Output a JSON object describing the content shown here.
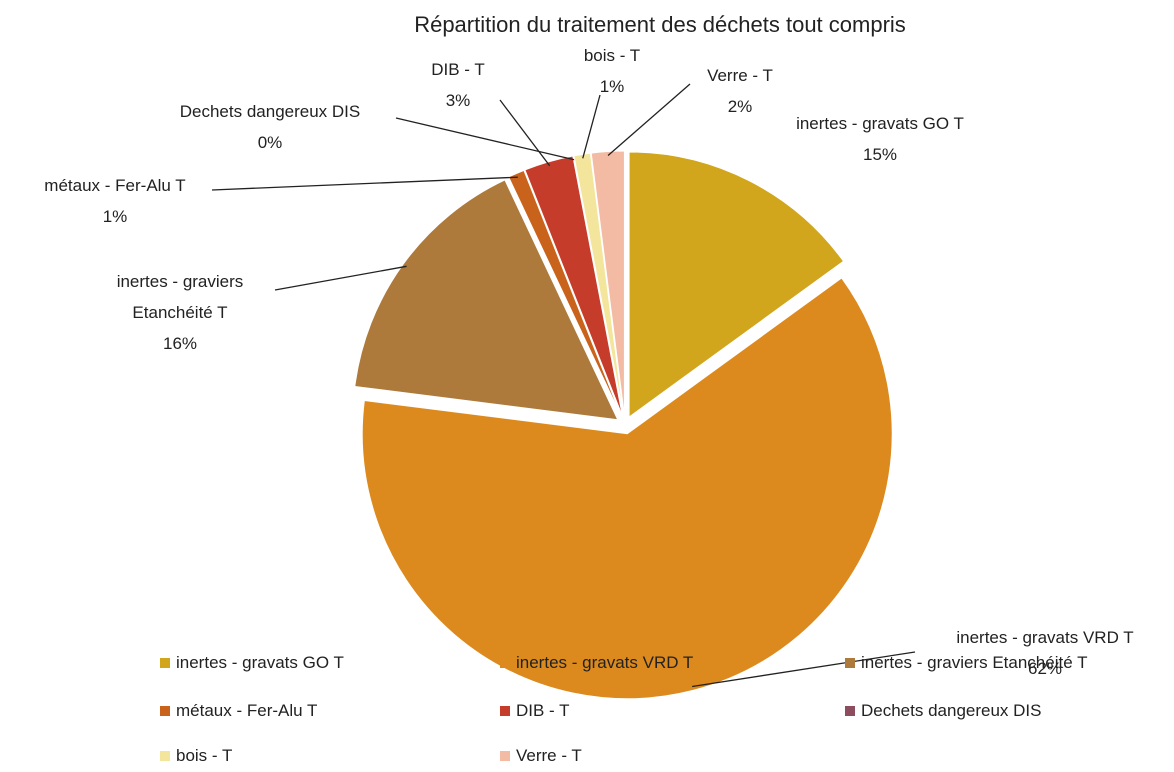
{
  "chart_data": {
    "type": "pie",
    "title": "Répartition du traitement des déchets tout compris",
    "categories": [
      "inertes - gravats GO T",
      "inertes - gravats VRD T",
      "inertes - graviers Etanchéité T",
      "métaux - Fer-Alu T",
      "DIB - T",
      "Dechets dangereux DIS",
      "bois - T",
      "Verre - T"
    ],
    "values": [
      15,
      62,
      16,
      1,
      3,
      0,
      1,
      2
    ],
    "value_labels": [
      "15%",
      "62%",
      "16%",
      "1%",
      "3%",
      "0%",
      "1%",
      "2%"
    ],
    "colors": [
      "#d1a51c",
      "#dc8a1e",
      "#ad7a3c",
      "#c9631b",
      "#c63c2a",
      "#8e4d5e",
      "#f4e59c",
      "#f3bba3"
    ]
  }
}
